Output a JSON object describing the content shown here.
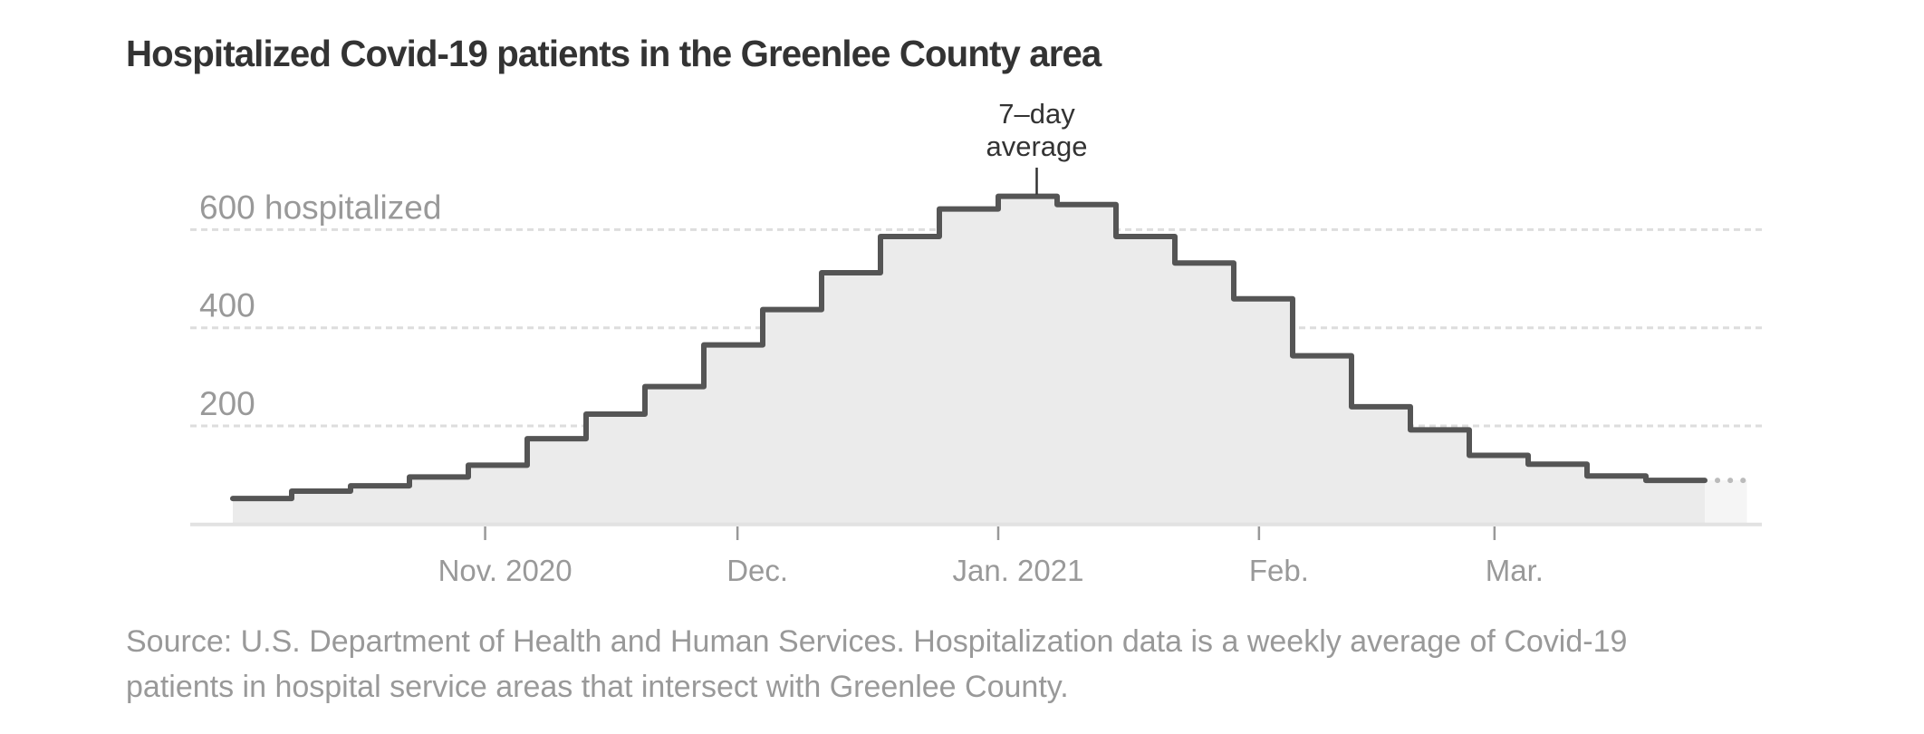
{
  "header": {
    "title": "Hospitalized Covid-19 patients in the Greenlee County area"
  },
  "footer": {
    "lines": [
      "Source: U.S. Department of Health and Human Services. Hospitalization data is a weekly average of Covid-19",
      "patients in hospital service areas that intersect with Greenlee County."
    ]
  },
  "colors": {
    "line": "#555555",
    "area": "#ebebeb",
    "area_incomplete": "#f5f5f5",
    "dots": "#bbbbbb",
    "grid": "#dddddd",
    "axis": "#e2e2e2",
    "tick": "#999999",
    "label": "#999999",
    "annotation": "#333333"
  },
  "chart_data": {
    "type": "area",
    "subtype": "step",
    "title": "Hospitalized Covid-19 patients in the Greenlee County area",
    "xlabel": "",
    "ylabel": "hospitalized",
    "series": [
      {
        "name": "7-day average",
        "interval": "weekly",
        "values": [
          52,
          67,
          78,
          96,
          120,
          174,
          224,
          280,
          365,
          437,
          512,
          586,
          642,
          668,
          651,
          586,
          532,
          459,
          343,
          239,
          192,
          140,
          122,
          98,
          89
        ]
      }
    ],
    "x_start": "2020-10-02",
    "x_end": "2021-03-31",
    "incomplete_period_start": "2021-03-26",
    "ylim": [
      0,
      700
    ],
    "yticks": [
      {
        "value": 200,
        "label": "200"
      },
      {
        "value": 400,
        "label": "400"
      },
      {
        "value": 600,
        "label": "600 hospitalized"
      }
    ],
    "xticks": [
      {
        "date": "2020-11-01",
        "label": "Nov. 2020"
      },
      {
        "date": "2020-12-01",
        "label": "Dec."
      },
      {
        "date": "2021-01-01",
        "label": "Jan. 2021"
      },
      {
        "date": "2021-02-01",
        "label": "Feb."
      },
      {
        "date": "2021-03-01",
        "label": "Mar."
      }
    ],
    "annotation": {
      "lines": [
        "7–day",
        "average"
      ],
      "target_index": 13
    },
    "grid": true,
    "legend": "none"
  }
}
